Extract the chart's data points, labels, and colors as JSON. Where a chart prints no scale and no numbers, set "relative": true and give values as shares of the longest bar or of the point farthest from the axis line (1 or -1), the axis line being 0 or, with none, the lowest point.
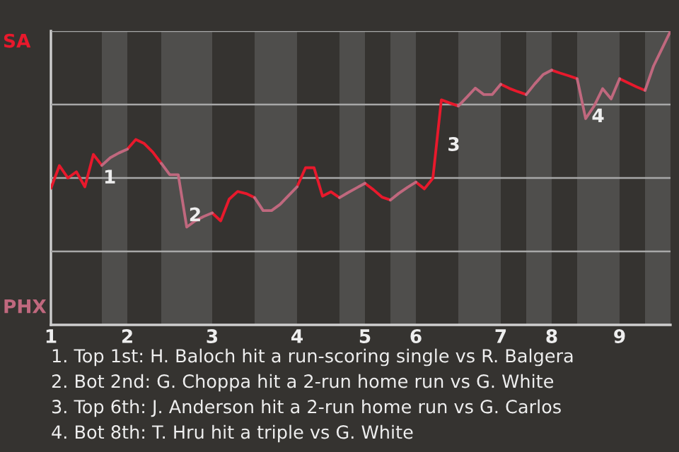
{
  "chart_data": {
    "type": "line",
    "relative": true,
    "categories": [
      "1",
      null,
      null,
      null,
      null,
      null,
      null,
      null,
      null,
      "2",
      null,
      null,
      null,
      null,
      null,
      null,
      null,
      null,
      null,
      "3",
      null,
      null,
      null,
      null,
      null,
      null,
      null,
      null,
      null,
      "4",
      null,
      null,
      null,
      null,
      null,
      null,
      null,
      "5",
      null,
      null,
      null,
      null,
      null,
      "6",
      null,
      null,
      null,
      null,
      null,
      null,
      null,
      null,
      null,
      "7",
      null,
      null,
      null,
      null,
      null,
      "8",
      null,
      null,
      null,
      null,
      null,
      null,
      null,
      "9",
      null,
      null,
      null,
      null,
      null,
      null
    ],
    "marker": "none",
    "line_style": "solid",
    "legend": false,
    "series": [
      {
        "name": "SA",
        "color": "#e8192c",
        "values": [
          0.465,
          0.542,
          0.5,
          0.521,
          0.47,
          0.58,
          0.543,
          null,
          null,
          0.598,
          0.631,
          0.617,
          0.588,
          0.55,
          null,
          null,
          null,
          null,
          null,
          0.381,
          0.354,
          0.428,
          0.454,
          0.447,
          0.433,
          null,
          null,
          null,
          null,
          0.47,
          0.535,
          0.535,
          0.438,
          0.453,
          0.433,
          null,
          null,
          0.482,
          0.46,
          0.435,
          0.425,
          null,
          null,
          0.486,
          0.463,
          0.499,
          0.766,
          0.755,
          0.745,
          null,
          null,
          null,
          null,
          0.819,
          0.805,
          0.794,
          0.784,
          null,
          null,
          0.867,
          0.857,
          0.848,
          0.838,
          null,
          null,
          null,
          null,
          0.838,
          0.824,
          0.81,
          0.798,
          null,
          null,
          null
        ]
      },
      {
        "name": "PHX",
        "color": "#c0687e",
        "values": [
          null,
          null,
          null,
          null,
          null,
          null,
          0.543,
          0.569,
          0.585,
          0.598,
          null,
          null,
          null,
          0.55,
          0.511,
          0.511,
          0.333,
          0.354,
          0.369,
          0.381,
          null,
          null,
          null,
          null,
          0.433,
          0.389,
          0.389,
          0.41,
          0.44,
          0.47,
          null,
          null,
          null,
          null,
          0.433,
          0.45,
          0.466,
          0.482,
          null,
          null,
          0.425,
          0.448,
          0.468,
          0.486,
          null,
          null,
          null,
          null,
          0.745,
          0.775,
          0.806,
          0.784,
          0.784,
          0.819,
          null,
          null,
          0.784,
          0.82,
          0.852,
          0.867,
          null,
          null,
          0.838,
          0.702,
          0.745,
          0.804,
          0.769,
          0.838,
          null,
          null,
          0.798,
          0.881,
          0.94,
          1.0
        ]
      }
    ],
    "grid": "y",
    "annotations": [
      {
        "text": "1",
        "y": 0.543
      },
      {
        "text": "2",
        "y": 0.333
      },
      {
        "text": "3",
        "y": 0.766
      },
      {
        "text": "4",
        "y": 0.745
      },
      "1. Top 1st: H. Baloch hit a run-scoring single vs R. Balgera",
      "2. Bot 2nd: G. Choppa hit a 2-run home run vs G. White",
      "3. Top 6th: J. Anderson hit a 2-run home run vs G. Carlos",
      "4. Bot 8th: T. Hru hit a triple vs G. White"
    ]
  }
}
